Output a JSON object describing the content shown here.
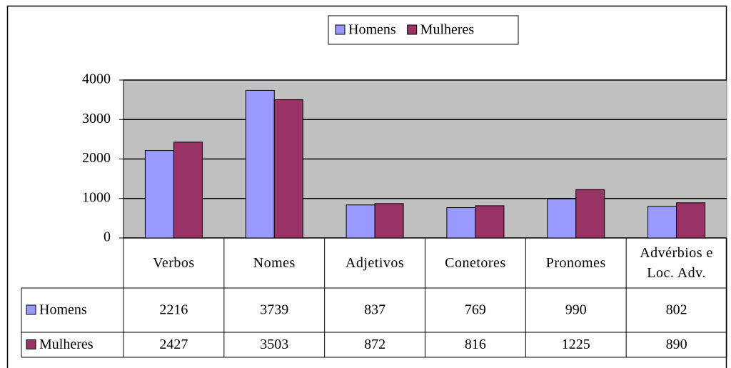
{
  "chart_data": {
    "type": "bar",
    "categories": [
      "Verbos",
      "Nomes",
      "Adjetivos",
      "Conetores",
      "Pronomes",
      "Advérbios e Loc. Adv."
    ],
    "series": [
      {
        "name": "Homens",
        "color": "#9999ff",
        "values": [
          2216,
          3739,
          837,
          769,
          990,
          802
        ]
      },
      {
        "name": "Mulheres",
        "color": "#993366",
        "values": [
          2427,
          3503,
          872,
          816,
          1225,
          890
        ]
      }
    ],
    "ylim": [
      0,
      4000
    ],
    "yticks": [
      0,
      1000,
      2000,
      3000,
      4000
    ],
    "grid": true,
    "legend": "top",
    "data_table": true,
    "plot_background": "#c0c0c0"
  }
}
